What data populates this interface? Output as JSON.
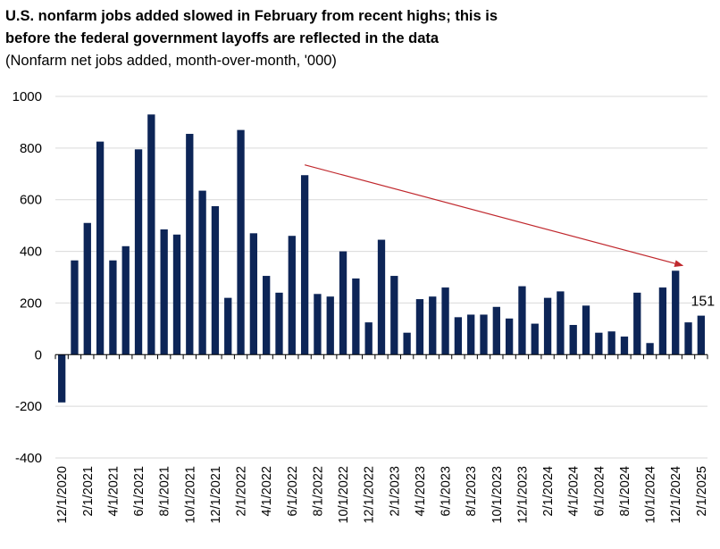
{
  "chart_data": {
    "type": "bar",
    "title_line1": "U.S. nonfarm jobs added slowed in February from recent highs; this is",
    "title_line2": "before the federal government layoffs are reflected in the data",
    "subtitle": "(Nonfarm net jobs added, month-over-month, '000)",
    "xlabel": "",
    "ylabel": "",
    "ylim": [
      -400,
      1000
    ],
    "yticks": [
      -400,
      -200,
      0,
      200,
      400,
      600,
      800,
      1000
    ],
    "grid": true,
    "bar_color": "#0d2557",
    "trend_color": "#c0282d",
    "categories": [
      "12/1/2020",
      "1/1/2021",
      "2/1/2021",
      "3/1/2021",
      "4/1/2021",
      "5/1/2021",
      "6/1/2021",
      "7/1/2021",
      "8/1/2021",
      "9/1/2021",
      "10/1/2021",
      "11/1/2021",
      "12/1/2021",
      "1/1/2022",
      "2/1/2022",
      "3/1/2022",
      "4/1/2022",
      "5/1/2022",
      "6/1/2022",
      "7/1/2022",
      "8/1/2022",
      "9/1/2022",
      "10/1/2022",
      "11/1/2022",
      "12/1/2022",
      "1/1/2023",
      "2/1/2023",
      "3/1/2023",
      "4/1/2023",
      "5/1/2023",
      "6/1/2023",
      "7/1/2023",
      "8/1/2023",
      "9/1/2023",
      "10/1/2023",
      "11/1/2023",
      "12/1/2023",
      "1/1/2024",
      "2/1/2024",
      "3/1/2024",
      "4/1/2024",
      "5/1/2024",
      "6/1/2024",
      "7/1/2024",
      "8/1/2024",
      "9/1/2024",
      "10/1/2024",
      "11/1/2024",
      "12/1/2024",
      "1/1/2025",
      "2/1/2025"
    ],
    "values": [
      -185,
      365,
      510,
      825,
      365,
      420,
      795,
      930,
      485,
      465,
      855,
      635,
      575,
      220,
      870,
      470,
      305,
      240,
      460,
      695,
      235,
      225,
      400,
      295,
      125,
      445,
      305,
      85,
      215,
      225,
      260,
      145,
      155,
      155,
      185,
      140,
      265,
      120,
      220,
      245,
      115,
      190,
      85,
      90,
      70,
      240,
      45,
      260,
      325,
      125,
      151
    ],
    "visible_xtick_labels": [
      "12/1/2020",
      "2/1/2021",
      "4/1/2021",
      "6/1/2021",
      "8/1/2021",
      "10/1/2021",
      "12/1/2021",
      "2/1/2022",
      "4/1/2022",
      "6/1/2022",
      "8/1/2022",
      "10/1/2022",
      "12/1/2022",
      "2/1/2023",
      "4/1/2023",
      "6/1/2023",
      "8/1/2023",
      "10/1/2023",
      "12/1/2023",
      "2/1/2024",
      "4/1/2024",
      "6/1/2024",
      "8/1/2024",
      "10/1/2024",
      "12/1/2024",
      "2/1/2025"
    ],
    "annotations": [
      {
        "text": "151",
        "category": "2/1/2025"
      }
    ],
    "trend_arrow": {
      "from": {
        "category": "7/1/2022",
        "value": 735
      },
      "to": {
        "category": "12/1/2024",
        "value": 345
      }
    }
  }
}
